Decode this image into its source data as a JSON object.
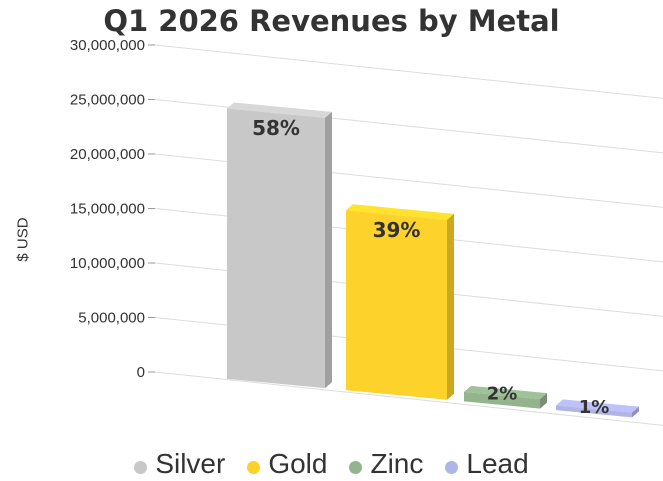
{
  "chart_data": {
    "type": "bar",
    "title": "Q1 2026 Revenues by Metal",
    "xlabel": "",
    "ylabel": "$ USD",
    "categories": [
      "Silver",
      "Gold",
      "Zinc",
      "Lead"
    ],
    "values": [
      24800000,
      16500000,
      870000,
      430000
    ],
    "data_labels": [
      "58%",
      "39%",
      "2%",
      "1%"
    ],
    "ylim": [
      0,
      30000000
    ],
    "yticks": [
      0,
      5000000,
      10000000,
      15000000,
      20000000,
      25000000,
      30000000
    ],
    "ytick_labels": [
      "0",
      "5,000,000",
      "10,000,000",
      "15,000,000",
      "20,000,000",
      "25,000,000",
      "30,000,000"
    ],
    "colors": [
      "#c8c8c8",
      "#fdd22b",
      "#93b48d",
      "#b0b4e6"
    ],
    "grid": true,
    "legend": "bottom",
    "style": "3d"
  }
}
